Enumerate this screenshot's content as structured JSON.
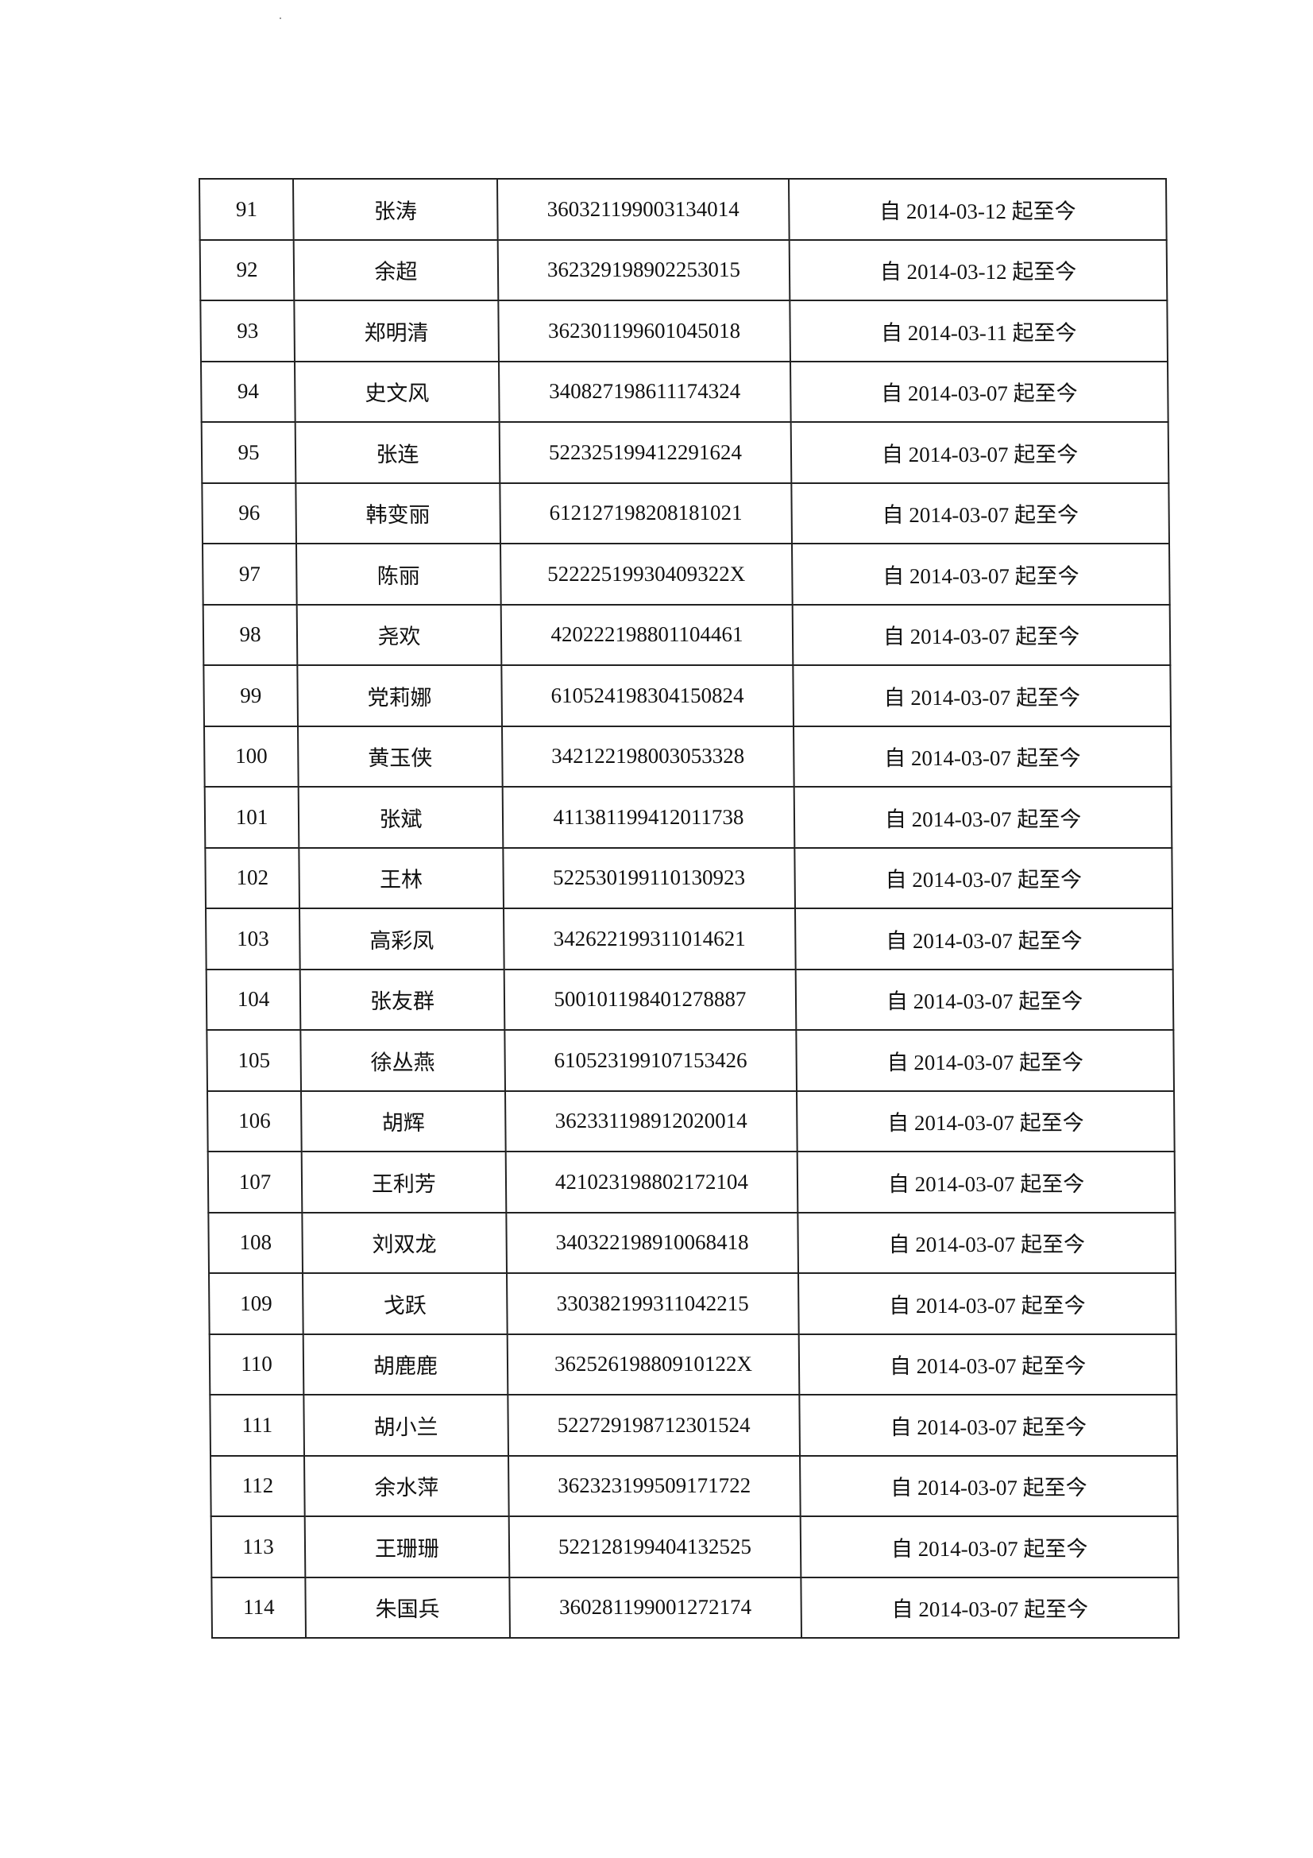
{
  "rows": [
    {
      "no": "91",
      "name": "张涛",
      "id": "360321199003134014",
      "period": "自 2014-03-12 起至今"
    },
    {
      "no": "92",
      "name": "余超",
      "id": "362329198902253015",
      "period": "自 2014-03-12 起至今"
    },
    {
      "no": "93",
      "name": "郑明清",
      "id": "362301199601045018",
      "period": "自 2014-03-11 起至今"
    },
    {
      "no": "94",
      "name": "史文风",
      "id": "340827198611174324",
      "period": "自 2014-03-07 起至今"
    },
    {
      "no": "95",
      "name": "张连",
      "id": "522325199412291624",
      "period": "自 2014-03-07 起至今"
    },
    {
      "no": "96",
      "name": "韩变丽",
      "id": "612127198208181021",
      "period": "自 2014-03-07 起至今"
    },
    {
      "no": "97",
      "name": "陈丽",
      "id": "52222519930409322X",
      "period": "自 2014-03-07 起至今"
    },
    {
      "no": "98",
      "name": "尧欢",
      "id": "420222198801104461",
      "period": "自 2014-03-07 起至今"
    },
    {
      "no": "99",
      "name": "党莉娜",
      "id": "610524198304150824",
      "period": "自 2014-03-07 起至今"
    },
    {
      "no": "100",
      "name": "黄玉侠",
      "id": "342122198003053328",
      "period": "自 2014-03-07 起至今"
    },
    {
      "no": "101",
      "name": "张斌",
      "id": "411381199412011738",
      "period": "自 2014-03-07 起至今"
    },
    {
      "no": "102",
      "name": "王林",
      "id": "522530199110130923",
      "period": "自 2014-03-07 起至今"
    },
    {
      "no": "103",
      "name": "高彩凤",
      "id": "342622199311014621",
      "period": "自 2014-03-07 起至今"
    },
    {
      "no": "104",
      "name": "张友群",
      "id": "500101198401278887",
      "period": "自 2014-03-07 起至今"
    },
    {
      "no": "105",
      "name": "徐丛燕",
      "id": "610523199107153426",
      "period": "自 2014-03-07 起至今"
    },
    {
      "no": "106",
      "name": "胡辉",
      "id": "362331198912020014",
      "period": "自 2014-03-07 起至今"
    },
    {
      "no": "107",
      "name": "王利芳",
      "id": "421023198802172104",
      "period": "自 2014-03-07 起至今"
    },
    {
      "no": "108",
      "name": "刘双龙",
      "id": "340322198910068418",
      "period": "自 2014-03-07 起至今"
    },
    {
      "no": "109",
      "name": "戈跃",
      "id": "330382199311042215",
      "period": "自 2014-03-07 起至今"
    },
    {
      "no": "110",
      "name": "胡鹿鹿",
      "id": "36252619880910122X",
      "period": "自 2014-03-07 起至今"
    },
    {
      "no": "111",
      "name": "胡小兰",
      "id": "522729198712301524",
      "period": "自 2014-03-07 起至今"
    },
    {
      "no": "112",
      "name": "余水萍",
      "id": "362323199509171722",
      "period": "自 2014-03-07 起至今"
    },
    {
      "no": "113",
      "name": "王珊珊",
      "id": "522128199404132525",
      "period": "自 2014-03-07 起至今"
    },
    {
      "no": "114",
      "name": "朱国兵",
      "id": "360281199001272174",
      "period": "自 2014-03-07 起至今"
    }
  ]
}
